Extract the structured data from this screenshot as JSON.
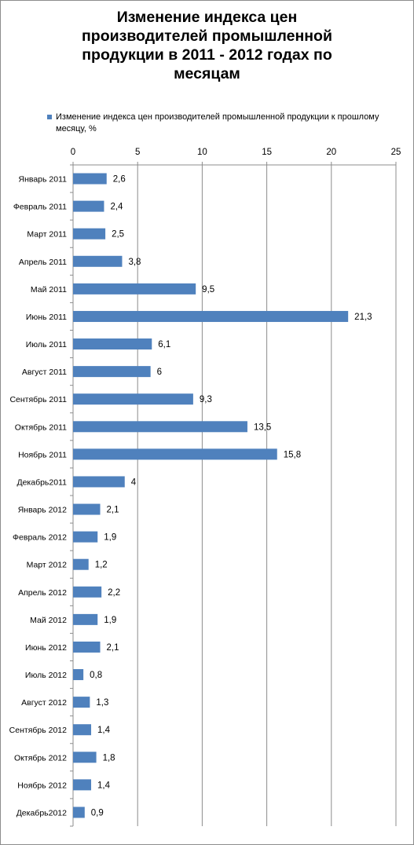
{
  "chart_data": {
    "type": "bar",
    "orientation": "horizontal",
    "title": "Изменение индекса цен\nпроизводителей промышленной\nпродукции в 2011 - 2012 годах по\nмесяцам",
    "legend_position": "top",
    "xlim": [
      0,
      25
    ],
    "x_ticks": [
      0,
      5,
      10,
      15,
      20,
      25
    ],
    "x_axis_position": "top",
    "grid": true,
    "bar_color": "#4f81bd",
    "categories": [
      "Январь 2011",
      "Февраль 2011",
      "Март 2011",
      "Апрель 2011",
      "Май 2011",
      "Июнь 2011",
      "Июль 2011",
      "Август 2011",
      "Сентябрь 2011",
      "Октябрь 2011",
      "Ноябрь 2011",
      "Декабрь2011",
      "Январь 2012",
      "Февраль 2012",
      "Март 2012",
      "Апрель 2012",
      "Май 2012",
      "Июнь 2012",
      "Июль 2012",
      "Август 2012",
      "Сентябрь 2012",
      "Октябрь 2012",
      "Ноябрь 2012",
      "Декабрь2012"
    ],
    "series": [
      {
        "name": "Изменение  индекса цен производителей  промышленной продукции к прошлому месяцу, %",
        "values": [
          2.6,
          2.4,
          2.5,
          3.8,
          9.5,
          21.3,
          6.1,
          6,
          9.3,
          13.5,
          15.8,
          4,
          2.1,
          1.9,
          1.2,
          2.2,
          1.9,
          2.1,
          0.8,
          1.3,
          1.4,
          1.8,
          1.4,
          0.9
        ],
        "data_labels": [
          "2,6",
          "2,4",
          "2,5",
          "3,8",
          "9,5",
          "21,3",
          "6,1",
          "6",
          "9,3",
          "13,5",
          "15,8",
          "4",
          "2,1",
          "1,9",
          "1,2",
          "2,2",
          "1,9",
          "2,1",
          "0,8",
          "1,3",
          "1,4",
          "1,8",
          "1,4",
          "0,9"
        ]
      }
    ]
  }
}
